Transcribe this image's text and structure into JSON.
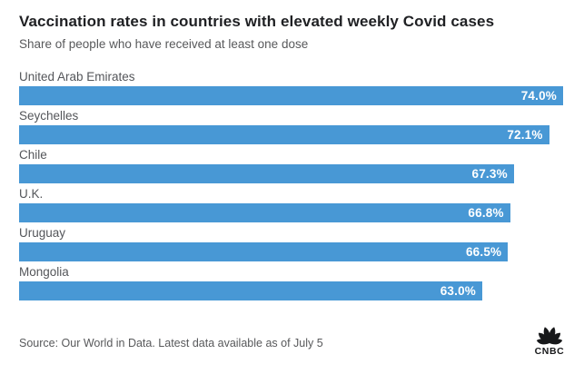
{
  "header": {
    "title": "Vaccination rates in countries with elevated weekly Covid cases",
    "subtitle": "Share of people who have received at least one dose"
  },
  "chart_data": {
    "type": "bar",
    "orientation": "horizontal",
    "title": "Vaccination rates in countries with elevated weekly Covid cases",
    "subtitle": "Share of people who have received at least one dose",
    "categories": [
      "United Arab Emirates",
      "Seychelles",
      "Chile",
      "U.K.",
      "Uruguay",
      "Mongolia"
    ],
    "values": [
      74.0,
      72.1,
      67.3,
      66.8,
      66.5,
      63.0
    ],
    "value_labels": [
      "74.0%",
      "72.1%",
      "67.3%",
      "66.8%",
      "66.5%",
      "63.0%"
    ],
    "xlabel": "",
    "ylabel": "",
    "xlim": [
      0,
      74
    ],
    "grid": false,
    "legend": "none",
    "value_label_position": "inside-right",
    "bar_color": "#4898d5",
    "value_label_color": "#ffffff"
  },
  "footer": {
    "source": "Source: Our World in Data. Latest data available as of July 5",
    "logo_name": "CNBC"
  }
}
